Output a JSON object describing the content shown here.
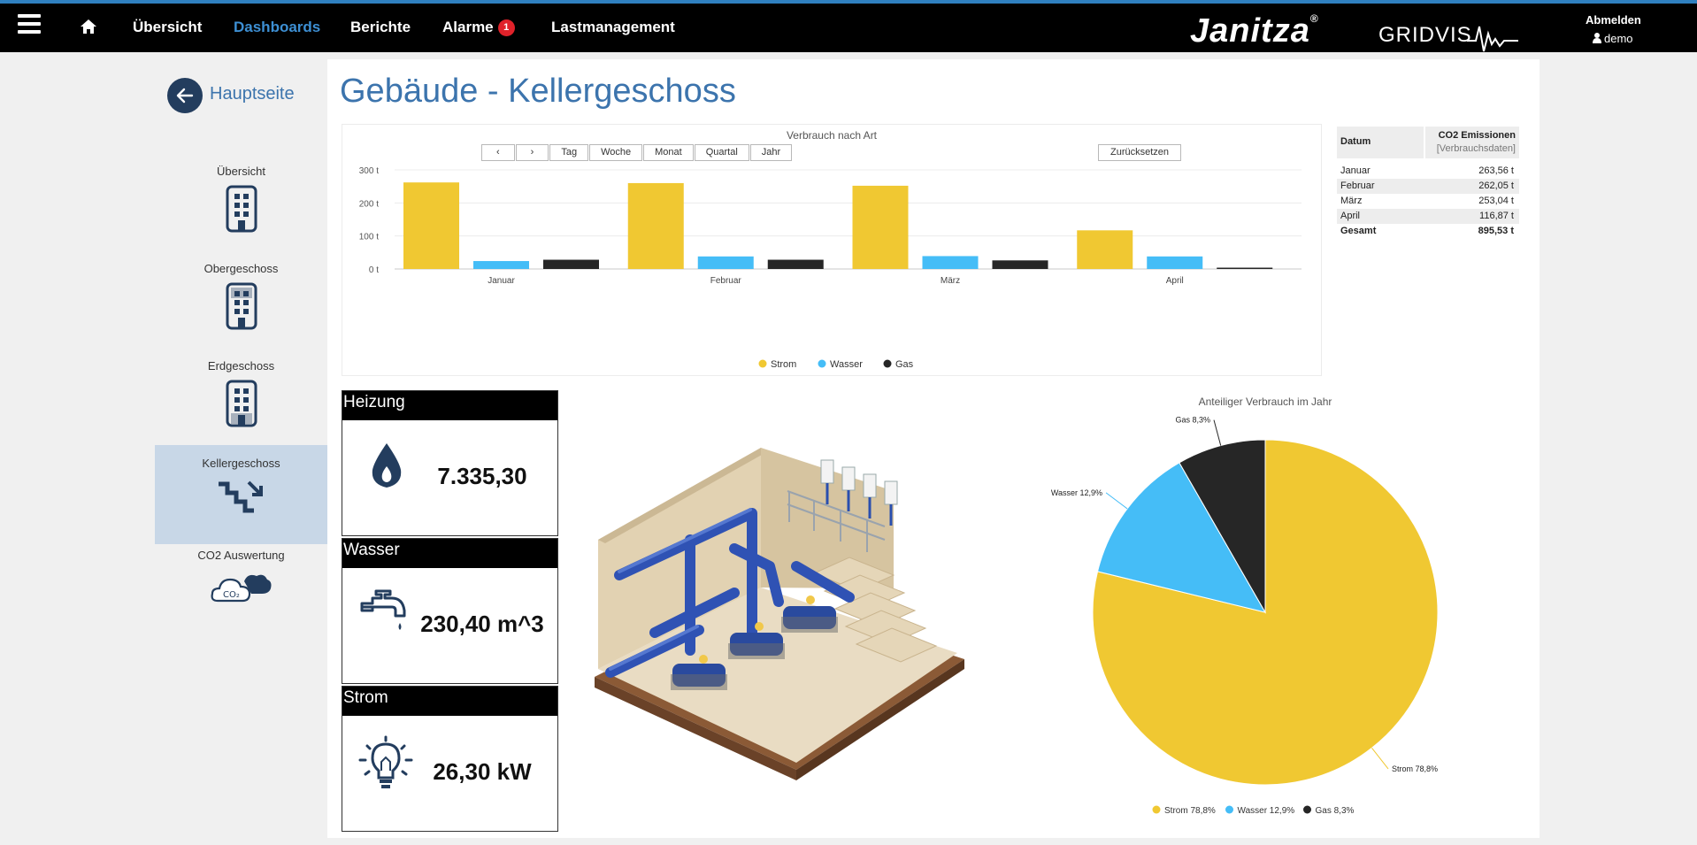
{
  "nav": {
    "items": [
      "Übersicht",
      "Dashboards",
      "Berichte",
      "Alarme",
      "Lastmanagement"
    ],
    "alarm_count": "1",
    "brand": "Janitza",
    "brand_mark": "®",
    "product": "GRIDVIS",
    "logout": "Abmelden",
    "user": "demo"
  },
  "sidebar": {
    "back_label": "Hauptseite",
    "items": [
      {
        "label": "Übersicht",
        "icon": "building-icon"
      },
      {
        "label": "Obergeschoss",
        "icon": "building-upper-floor-icon"
      },
      {
        "label": "Erdgeschoss",
        "icon": "building-ground-floor-icon"
      },
      {
        "label": "Kellergeschoss",
        "icon": "stairs-down-icon"
      },
      {
        "label": "CO2 Auswertung",
        "icon": "co2-cloud-icon"
      }
    ]
  },
  "page": {
    "title": "Gebäude - Kellergeschoss"
  },
  "bar_toolbar": {
    "prev": "‹",
    "next": "›",
    "buttons": [
      "Tag",
      "Woche",
      "Monat",
      "Quartal",
      "Jahr"
    ],
    "reset": "Zurücksetzen"
  },
  "co2": {
    "header_date": "Datum",
    "header_value": "CO2 Emissionen",
    "header_sub": "[Verbrauchsdaten]",
    "rows": [
      {
        "label": "Januar",
        "value": "263,56 t"
      },
      {
        "label": "Februar",
        "value": "262,05 t"
      },
      {
        "label": "März",
        "value": "253,04 t"
      },
      {
        "label": "April",
        "value": "116,87 t"
      }
    ],
    "total": {
      "label": "Gesamt",
      "value": "895,53 t"
    }
  },
  "kpis": [
    {
      "title": "Heizung",
      "value": "7.335,30",
      "icon": "flame-drop-icon"
    },
    {
      "title": "Wasser",
      "value": "230,40 m^3",
      "icon": "water-tap-icon"
    },
    {
      "title": "Strom",
      "value": "26,30 kW",
      "icon": "lightbulb-icon"
    }
  ],
  "colors": {
    "strom": "#f0c832",
    "wasser": "#45bdf7",
    "gas": "#262626",
    "accent": "#3c74ad",
    "nav_active": "#3d8fd3"
  },
  "chart_data": [
    {
      "type": "bar",
      "title": "Verbrauch nach Art",
      "categories": [
        "Januar",
        "Februar",
        "März",
        "April"
      ],
      "series": [
        {
          "name": "Strom",
          "values": [
            262,
            260,
            252,
            117
          ]
        },
        {
          "name": "Wasser",
          "values": [
            24,
            38,
            39,
            38
          ]
        },
        {
          "name": "Gas",
          "values": [
            28,
            28,
            26,
            4
          ]
        }
      ],
      "yticks": [
        "0 t",
        "100 t",
        "200 t",
        "300 t"
      ],
      "ylim": [
        0,
        300
      ],
      "legend": "bottom",
      "grid": true
    },
    {
      "type": "pie",
      "title": "Anteiliger Verbrauch im Jahr",
      "slices": [
        {
          "name": "Strom",
          "value": 78.8,
          "label": "Strom 78,8%"
        },
        {
          "name": "Wasser",
          "value": 12.9,
          "label": "Wasser 12,9%"
        },
        {
          "name": "Gas",
          "value": 8.3,
          "label": "Gas 8,3%"
        }
      ],
      "legend": "bottom"
    }
  ]
}
